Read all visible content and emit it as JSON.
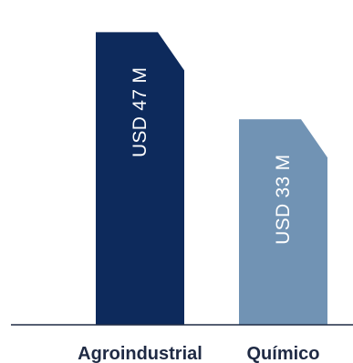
{
  "chart_data": {
    "type": "bar",
    "categories": [
      "Agroindustrial",
      "Químico"
    ],
    "values": [
      47,
      33
    ],
    "data_labels": [
      "USD 47 M",
      "USD 33 M"
    ],
    "colors": [
      "#0d2a5c",
      "#7193b4"
    ],
    "axis_color": "#1f2a44",
    "title": "",
    "xlabel": "",
    "ylabel": "",
    "ylim": [
      0,
      51
    ],
    "grid": false,
    "legend": "none"
  }
}
